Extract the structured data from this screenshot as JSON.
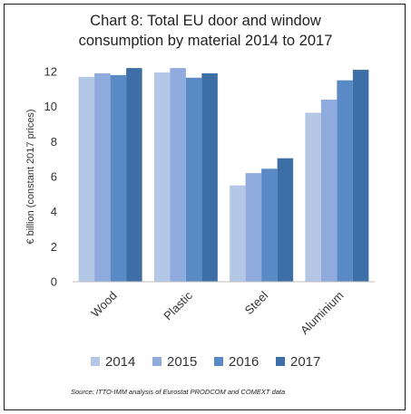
{
  "chart_data": {
    "type": "bar",
    "title": "Chart 8: Total EU door and window\nconsumption by material 2014 to 2017",
    "ylabel": "€ billion (constant 2017 prices)",
    "xlabel": "",
    "ylim": [
      0,
      12
    ],
    "yticks": [
      0,
      2,
      4,
      6,
      8,
      10,
      12
    ],
    "categories": [
      "Wood",
      "Plastic",
      "Steel",
      "Aluminium"
    ],
    "series": [
      {
        "name": "2014",
        "color": "#b4c7e7",
        "values": [
          11.7,
          11.95,
          5.5,
          9.65
        ]
      },
      {
        "name": "2015",
        "color": "#8faadc",
        "values": [
          11.9,
          12.2,
          6.2,
          10.4
        ]
      },
      {
        "name": "2016",
        "color": "#5a8ac6",
        "values": [
          11.8,
          11.65,
          6.45,
          11.5
        ]
      },
      {
        "name": "2017",
        "color": "#3e6ea6",
        "values": [
          12.2,
          11.9,
          7.05,
          12.1
        ]
      }
    ],
    "grid": false,
    "legend_position": "bottom"
  },
  "source_note": "Source: ITTO-IMM analysis of Eurostat PRODCOM and COMEXT data"
}
